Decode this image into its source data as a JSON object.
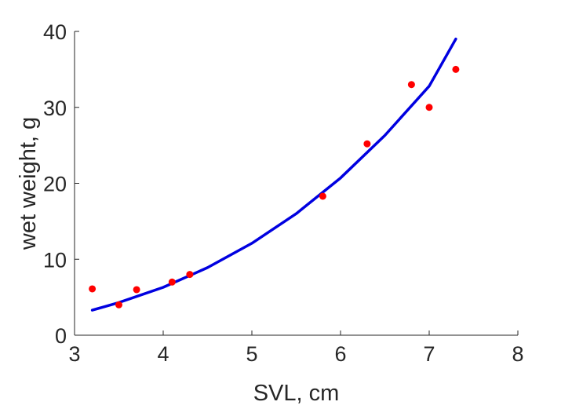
{
  "chart_data": {
    "type": "scatter",
    "title": "",
    "xlabel": "SVL, cm",
    "ylabel": "wet weight, g",
    "xlim": [
      3,
      8
    ],
    "ylim": [
      0,
      40
    ],
    "x_ticks": [
      "3",
      "4",
      "5",
      "6",
      "7",
      "8"
    ],
    "y_ticks": [
      "0",
      "10",
      "20",
      "30",
      "40"
    ],
    "grid": false,
    "series": [
      {
        "kind": "scatter",
        "color": "#ff0000",
        "x": [
          3.2,
          3.5,
          3.7,
          4.1,
          4.3,
          5.8,
          6.3,
          6.8,
          7.0,
          7.3
        ],
        "y": [
          6.1,
          4.0,
          6.0,
          7.0,
          8.0,
          18.3,
          25.2,
          33.0,
          30.0,
          35.0
        ]
      },
      {
        "kind": "line",
        "color": "#0000e0",
        "x": [
          3.2,
          3.5,
          4.0,
          4.5,
          5.0,
          5.5,
          6.0,
          6.5,
          7.0,
          7.3
        ],
        "y": [
          3.3,
          4.3,
          6.3,
          8.9,
          12.1,
          16.0,
          20.7,
          26.3,
          32.8,
          39.0
        ]
      }
    ]
  }
}
